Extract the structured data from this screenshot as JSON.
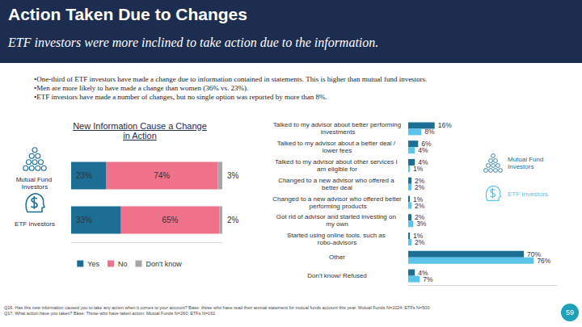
{
  "header": {
    "title": "Action Taken Due to Changes",
    "subtitle": "ETF investors were more inclined to take action due to the information."
  },
  "bullets": [
    "•One-third of ETF investors have made a change due to information contained in statements.  This is higher than mutual fund investors.",
    "•Men are more likely to have made a change than women (36% vs. 23%).",
    "•ETF investors have made a number of changes, but no single option was reported by more than 8%."
  ],
  "chart_data": [
    {
      "type": "bar",
      "title": "New Information Cause a Change in Action",
      "orientation": "horizontal",
      "stacked": true,
      "data_labels": true,
      "grid": false,
      "legend": "bottom",
      "tick_labels": "y",
      "categories": [
        "Mutual Fund Investors",
        "ETF Investors"
      ],
      "xlim": [
        0,
        100
      ],
      "series": [
        {
          "name": "Yes",
          "color": "#1c6e94",
          "values": [
            23,
            33
          ],
          "value_labels": [
            "23%",
            "33%"
          ]
        },
        {
          "name": "No",
          "color": "#f0728a",
          "values": [
            74,
            65
          ],
          "value_labels": [
            "74%",
            "65%"
          ]
        },
        {
          "name": "Don't know",
          "color": "#a6a6a6",
          "values": [
            3,
            2
          ],
          "value_labels": [
            "3%",
            "2%"
          ]
        }
      ]
    },
    {
      "type": "bar",
      "orientation": "horizontal",
      "stacked": false,
      "data_labels": true,
      "grid": false,
      "legend": "right",
      "tick_labels": "y",
      "categories": [
        "Talked to my advisor about better performing investments",
        "Talked to my advisor about a better deal / lower fees",
        "Talked to my advisor about other services I am eligible for",
        "Changed to a new advisor who offered a better deal",
        "Changed to a new advisor who offered better performing products",
        "Got rid of advisor and started investing on my own",
        "Started using online tools, such as robo-advisors",
        "Other",
        "Don't know/ Refused"
      ],
      "xlim": [
        0,
        90
      ],
      "series": [
        {
          "name": "Mutual Fund Investors",
          "color": "#1c6e94",
          "values": [
            16,
            6,
            4,
            2,
            1,
            2,
            1,
            70,
            4
          ],
          "value_labels": [
            "16%",
            "6%",
            "4%",
            "2%",
            "1%",
            "2%",
            "1%",
            "70%",
            "4%"
          ]
        },
        {
          "name": "ETF Investors",
          "color": "#5bc4ec",
          "values": [
            8,
            4,
            1,
            2,
            2,
            3,
            2,
            76,
            7
          ],
          "value_labels": [
            "8%",
            "4%",
            "1%",
            "2%",
            "2%",
            "3%",
            "2%",
            "76%",
            "7%"
          ]
        }
      ]
    }
  ],
  "footnotes": [
    "Q16. Has this new information caused you to take any action when it comes to your account? Base: those who have read their annual statement for mutual funds account this year: Mutual Funds N=1024; ETFs N=500",
    "Q17. What action have you taken? Base: Those who have taken action: Mutual Funds N=260; ETFs N=161"
  ],
  "page_number": 59
}
